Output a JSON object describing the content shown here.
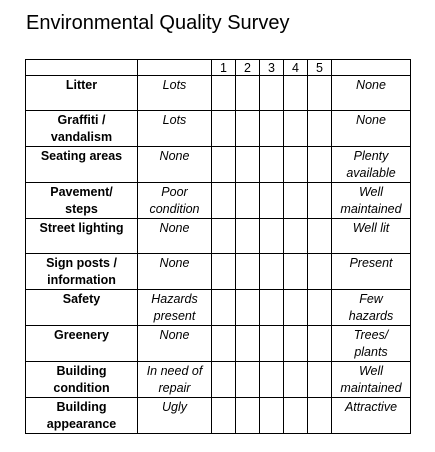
{
  "header": {
    "title": "Environmental Quality Survey"
  },
  "table": {
    "scale": [
      "1",
      "2",
      "3",
      "4",
      "5"
    ],
    "rows": [
      {
        "label": "Litter",
        "low": "Lots",
        "high": "None"
      },
      {
        "label": "Graffiti /\nvandalism",
        "low": "Lots",
        "high": "None"
      },
      {
        "label": "Seating areas",
        "low": "None",
        "high": "Plenty\navailable"
      },
      {
        "label": "Pavement/\nsteps",
        "low": "Poor\ncondition",
        "high": "Well\nmaintained"
      },
      {
        "label": "Street lighting",
        "low": "None",
        "high": "Well lit"
      },
      {
        "label": "Sign posts /\ninformation",
        "low": "None",
        "high": "Present"
      },
      {
        "label": "Safety",
        "low": "Hazards\npresent",
        "high": "Few\nhazards"
      },
      {
        "label": "Greenery",
        "low": "None",
        "high": "Trees/\nplants"
      },
      {
        "label": "Building\ncondition",
        "low": "In need of\nrepair",
        "high": "Well\nmaintained"
      },
      {
        "label": "Building\nappearance",
        "low": "Ugly",
        "high": "Attractive"
      }
    ]
  }
}
